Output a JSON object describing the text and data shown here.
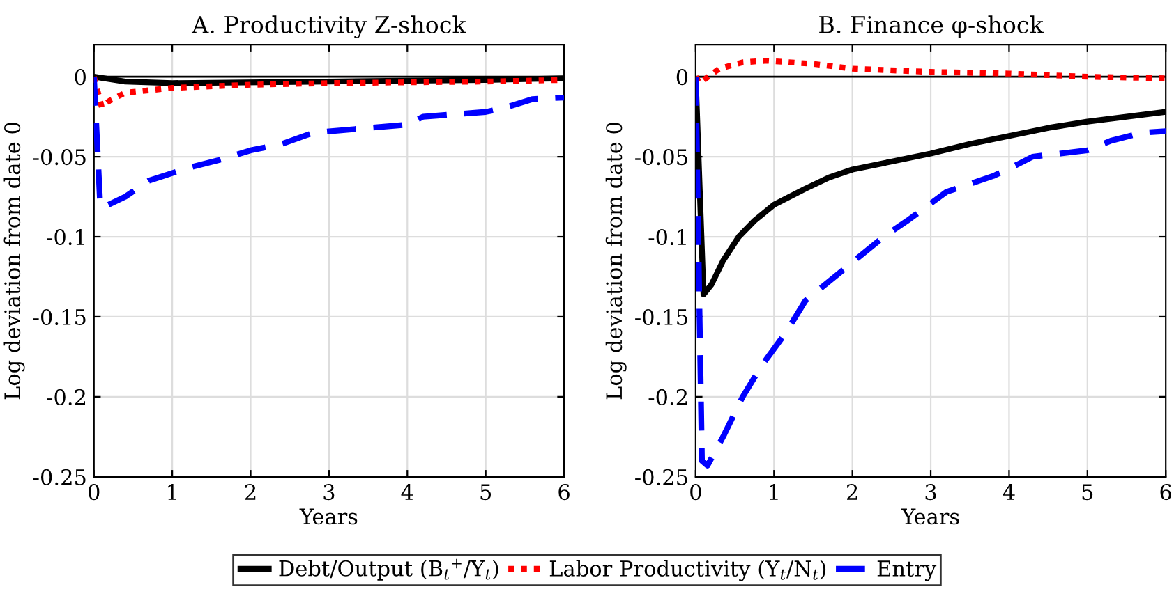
{
  "chart_data": [
    {
      "type": "line",
      "title": "A. Productivity Z-shock",
      "xlabel": "Years",
      "ylabel": "Log deviation from date 0",
      "xlim": [
        0,
        6
      ],
      "ylim": [
        -0.25,
        0.02
      ],
      "xticks": [
        0,
        1,
        2,
        3,
        4,
        5,
        6
      ],
      "yticks": [
        -0.25,
        -0.2,
        -0.15,
        -0.1,
        -0.05,
        0
      ],
      "grid": true,
      "legend": "bottom",
      "ref_lines": [
        {
          "axis": "y",
          "value": 0,
          "color": "#000000",
          "line_style": "solid"
        }
      ],
      "series": [
        {
          "name": "Debt/Output (B$_{t}$$^{+}$/Y$_{t}$)",
          "color": "#000000",
          "line_style": "solid",
          "x": [
            0,
            0.4,
            1,
            3,
            5,
            6
          ],
          "values": [
            0,
            -0.003,
            -0.004,
            -0.003,
            -0.002,
            -0.001
          ]
        },
        {
          "name": "Labor Productivity (Y$_{t}$/N$_{t}$)",
          "color": "#ff0000",
          "line_style": "dotted",
          "x": [
            0,
            0.1,
            0.2,
            0.4,
            1,
            2,
            3,
            5,
            6
          ],
          "values": [
            0,
            -0.019,
            -0.015,
            -0.01,
            -0.007,
            -0.005,
            -0.004,
            -0.003,
            -0.002
          ]
        },
        {
          "name": "Entry",
          "color": "#0000ff",
          "line_style": "dashed",
          "x": [
            0,
            0.08,
            0.1,
            0.4,
            0.7,
            1.2,
            1.6,
            2,
            2.4,
            2.8,
            3.5,
            4,
            4.2,
            5,
            5.2,
            5.6,
            6
          ],
          "values": [
            0,
            -0.08,
            -0.082,
            -0.075,
            -0.065,
            -0.057,
            -0.052,
            -0.046,
            -0.042,
            -0.035,
            -0.032,
            -0.03,
            -0.025,
            -0.022,
            -0.02,
            -0.014,
            -0.013
          ]
        }
      ]
    },
    {
      "type": "line",
      "title": "B. Finance φ-shock",
      "xlabel": "Years",
      "ylabel": "Log deviation from date 0",
      "xlim": [
        0,
        6
      ],
      "ylim": [
        -0.25,
        0.02
      ],
      "xticks": [
        0,
        1,
        2,
        3,
        4,
        5,
        6
      ],
      "yticks": [
        -0.25,
        -0.2,
        -0.15,
        -0.1,
        -0.05,
        0
      ],
      "grid": true,
      "legend": "bottom",
      "ref_lines": [
        {
          "axis": "y",
          "value": 0,
          "color": "#000000",
          "line_style": "solid"
        }
      ],
      "series": [
        {
          "name": "Debt/Output (B$_{t}$$^{+}$/Y$_{t}$)",
          "color": "#000000",
          "line_style": "solid",
          "x": [
            0,
            0.1,
            0.2,
            0.35,
            0.55,
            0.75,
            1,
            1.4,
            1.7,
            2,
            2.5,
            3,
            3.5,
            4,
            4.5,
            5,
            5.5,
            6
          ],
          "values": [
            0,
            -0.136,
            -0.13,
            -0.115,
            -0.1,
            -0.09,
            -0.08,
            -0.07,
            -0.063,
            -0.058,
            -0.053,
            -0.048,
            -0.042,
            -0.037,
            -0.032,
            -0.028,
            -0.025,
            -0.022
          ]
        },
        {
          "name": "Labor Productivity (Y$_{t}$/N$_{t}$)",
          "color": "#ff0000",
          "line_style": "dotted",
          "x": [
            0,
            0.05,
            0.3,
            0.6,
            0.9,
            1.5,
            2,
            3,
            4,
            5,
            6
          ],
          "values": [
            0,
            -0.004,
            0.005,
            0.009,
            0.01,
            0.008,
            0.005,
            0.003,
            0.002,
            0.0,
            -0.001
          ]
        },
        {
          "name": "Entry",
          "color": "#0000ff",
          "line_style": "dashed",
          "x": [
            0,
            0.08,
            0.15,
            0.35,
            0.6,
            0.85,
            1.15,
            1.4,
            1.9,
            2.4,
            2.7,
            3.2,
            3.8,
            4.1,
            4.3,
            5,
            5.3,
            5.7,
            6
          ],
          "values": [
            0,
            -0.24,
            -0.243,
            -0.225,
            -0.2,
            -0.18,
            -0.16,
            -0.14,
            -0.12,
            -0.1,
            -0.09,
            -0.072,
            -0.062,
            -0.055,
            -0.05,
            -0.046,
            -0.04,
            -0.035,
            -0.034
          ]
        }
      ]
    }
  ]
}
